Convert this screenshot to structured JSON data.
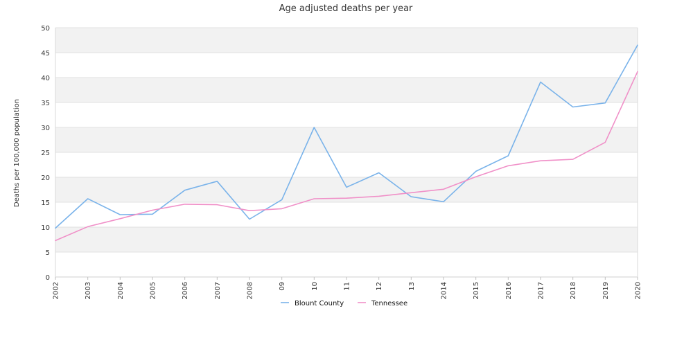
{
  "chart_data": {
    "type": "line",
    "title": "Age adjusted deaths per year",
    "xlabel": "",
    "ylabel": "Deaths per 100,000 population",
    "categories": [
      "2002",
      "2003",
      "2004",
      "2005",
      "2006",
      "2007",
      "2008",
      "09",
      "10",
      "11",
      "12",
      "13",
      "2014",
      "2015",
      "2016",
      "2017",
      "2018",
      "2019",
      "2020"
    ],
    "ylim": [
      0,
      50
    ],
    "yticks": [
      0,
      5,
      10,
      15,
      20,
      25,
      30,
      35,
      40,
      45,
      50
    ],
    "grid": true,
    "banded_background": true,
    "legend_position": "bottom-center",
    "series": [
      {
        "name": "Blount County",
        "color": "#7ab3ea",
        "values": [
          9.8,
          15.7,
          12.5,
          12.6,
          17.4,
          19.2,
          11.6,
          15.5,
          30.0,
          18.0,
          20.9,
          16.1,
          15.1,
          21.2,
          24.3,
          39.1,
          34.1,
          34.9,
          46.5
        ]
      },
      {
        "name": "Tennessee",
        "color": "#f090c8",
        "values": [
          7.3,
          10.1,
          11.7,
          13.4,
          14.6,
          14.5,
          13.3,
          13.7,
          15.7,
          15.8,
          16.2,
          16.9,
          17.6,
          20.1,
          22.3,
          23.3,
          23.6,
          27.0,
          41.2
        ]
      }
    ]
  }
}
